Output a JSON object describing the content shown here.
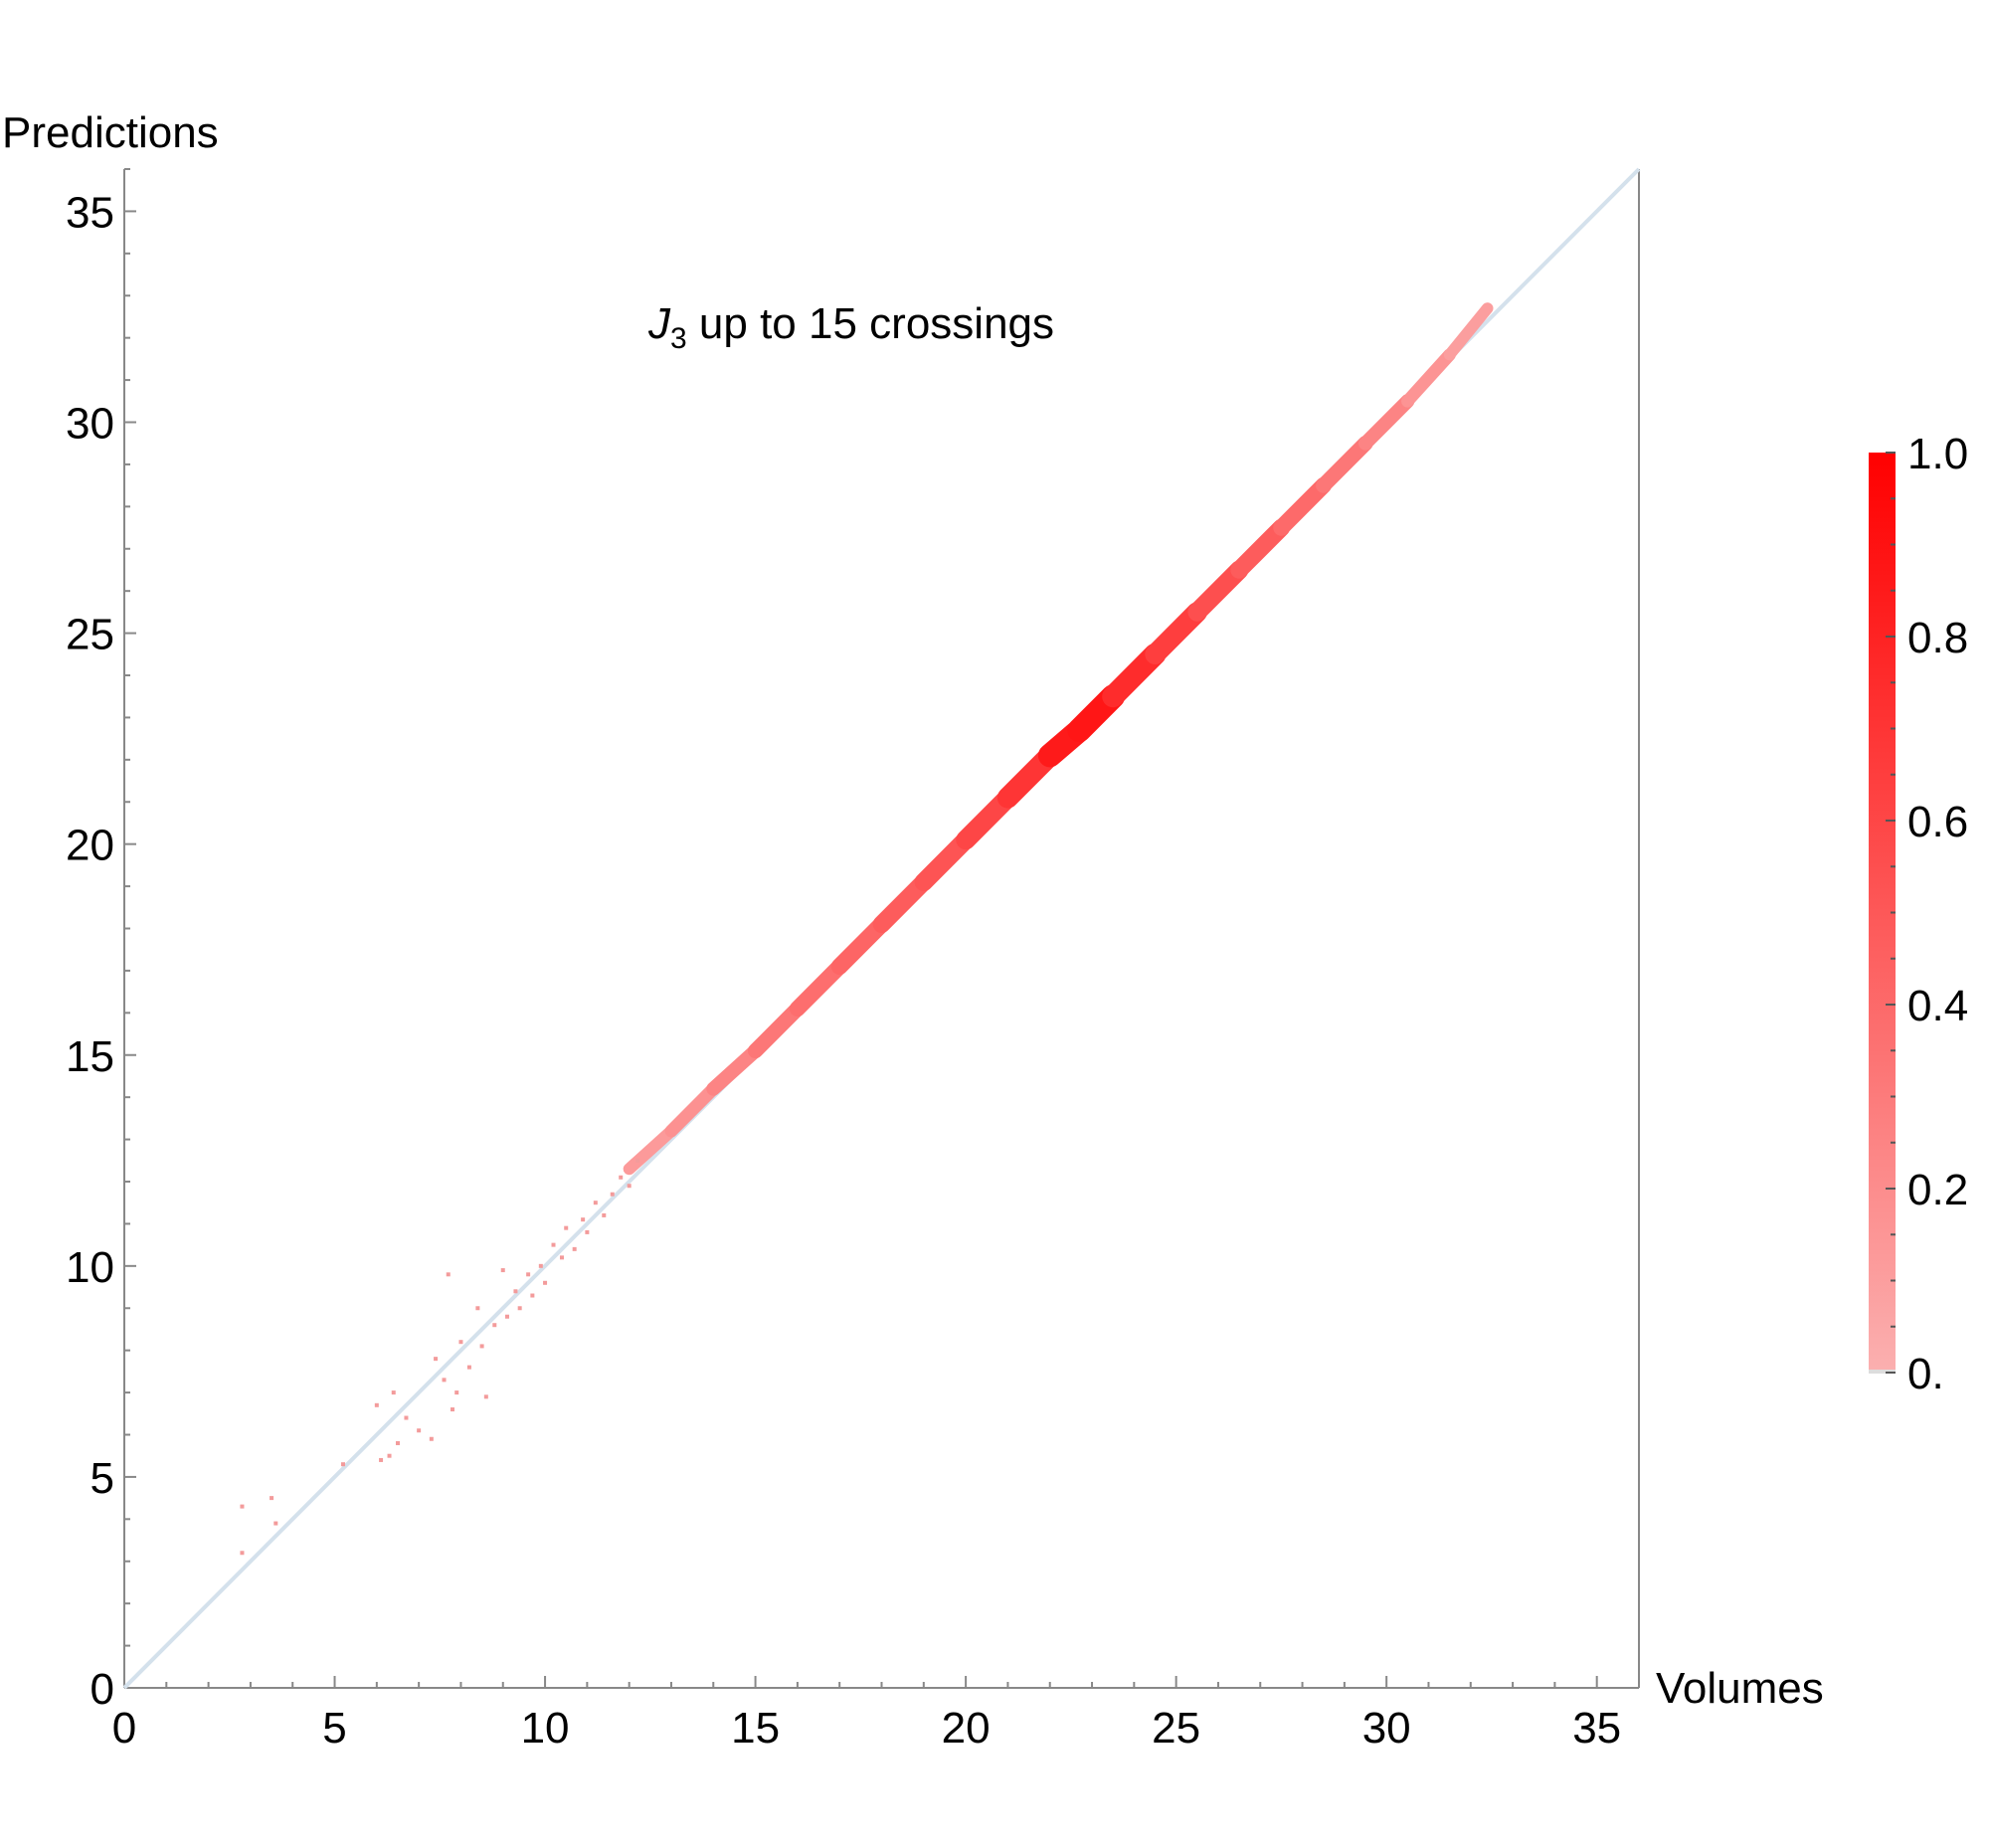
{
  "chart_data": {
    "type": "heatmap",
    "title_prefix": "J",
    "title_subscript": "3",
    "title_rest": " up to 15 crossings",
    "xlabel": "Volumes",
    "ylabel": "Predictions",
    "xlim": [
      0,
      36
    ],
    "ylim": [
      0,
      36
    ],
    "x_ticks": [
      "0",
      "5",
      "10",
      "15",
      "20",
      "25",
      "30",
      "35"
    ],
    "x_tick_values": [
      0,
      5,
      10,
      15,
      20,
      25,
      30,
      35
    ],
    "y_ticks": [
      "0",
      "5",
      "10",
      "15",
      "20",
      "25",
      "30",
      "35"
    ],
    "y_tick_values": [
      0,
      5,
      10,
      15,
      20,
      25,
      30,
      35
    ],
    "reference_line": {
      "from": [
        0,
        0
      ],
      "to": [
        36,
        36
      ],
      "color": "#d4e1ec"
    },
    "density_band": {
      "points": [
        {
          "x": 12,
          "y": 12.3,
          "density": 0.1
        },
        {
          "x": 13,
          "y": 13.2,
          "density": 0.15
        },
        {
          "x": 14,
          "y": 14.2,
          "density": 0.2
        },
        {
          "x": 15,
          "y": 15.1,
          "density": 0.3
        },
        {
          "x": 16,
          "y": 16.1,
          "density": 0.35
        },
        {
          "x": 17,
          "y": 17.1,
          "density": 0.4
        },
        {
          "x": 18,
          "y": 18.1,
          "density": 0.45
        },
        {
          "x": 19,
          "y": 19.1,
          "density": 0.5
        },
        {
          "x": 20,
          "y": 20.1,
          "density": 0.55
        },
        {
          "x": 21,
          "y": 21.1,
          "density": 0.65
        },
        {
          "x": 22,
          "y": 22.1,
          "density": 0.75
        },
        {
          "x": 22.7,
          "y": 22.7,
          "density": 0.95
        },
        {
          "x": 23.5,
          "y": 23.5,
          "density": 0.8
        },
        {
          "x": 24.5,
          "y": 24.5,
          "density": 0.7
        },
        {
          "x": 25.5,
          "y": 25.5,
          "density": 0.6
        },
        {
          "x": 26.5,
          "y": 26.5,
          "density": 0.5
        },
        {
          "x": 27.5,
          "y": 27.5,
          "density": 0.45
        },
        {
          "x": 28.5,
          "y": 28.5,
          "density": 0.35
        },
        {
          "x": 29.5,
          "y": 29.5,
          "density": 0.3
        },
        {
          "x": 30.5,
          "y": 30.5,
          "density": 0.2
        },
        {
          "x": 31.5,
          "y": 31.6,
          "density": 0.12
        },
        {
          "x": 32.4,
          "y": 32.7,
          "density": 0.08
        }
      ]
    },
    "scatter_outliers": [
      {
        "x": 2.8,
        "y": 4.3
      },
      {
        "x": 2.8,
        "y": 3.2
      },
      {
        "x": 3.5,
        "y": 4.5
      },
      {
        "x": 3.6,
        "y": 3.9
      },
      {
        "x": 5.2,
        "y": 5.3
      },
      {
        "x": 6.0,
        "y": 6.7
      },
      {
        "x": 6.1,
        "y": 5.4
      },
      {
        "x": 6.3,
        "y": 5.5
      },
      {
        "x": 6.4,
        "y": 7.0
      },
      {
        "x": 6.5,
        "y": 5.8
      },
      {
        "x": 6.7,
        "y": 6.4
      },
      {
        "x": 7.0,
        "y": 6.1
      },
      {
        "x": 7.3,
        "y": 5.9
      },
      {
        "x": 7.4,
        "y": 7.8
      },
      {
        "x": 7.6,
        "y": 7.3
      },
      {
        "x": 7.7,
        "y": 9.8
      },
      {
        "x": 7.8,
        "y": 6.6
      },
      {
        "x": 7.9,
        "y": 7.0
      },
      {
        "x": 8.0,
        "y": 8.2
      },
      {
        "x": 8.2,
        "y": 7.6
      },
      {
        "x": 8.4,
        "y": 9.0
      },
      {
        "x": 8.5,
        "y": 8.1
      },
      {
        "x": 8.6,
        "y": 6.9
      },
      {
        "x": 8.8,
        "y": 8.6
      },
      {
        "x": 9.0,
        "y": 9.9
      },
      {
        "x": 9.1,
        "y": 8.8
      },
      {
        "x": 9.3,
        "y": 9.4
      },
      {
        "x": 9.4,
        "y": 9.0
      },
      {
        "x": 9.6,
        "y": 9.8
      },
      {
        "x": 9.7,
        "y": 9.3
      },
      {
        "x": 9.9,
        "y": 10.0
      },
      {
        "x": 10.0,
        "y": 9.6
      },
      {
        "x": 10.2,
        "y": 10.5
      },
      {
        "x": 10.4,
        "y": 10.2
      },
      {
        "x": 10.5,
        "y": 10.9
      },
      {
        "x": 10.7,
        "y": 10.4
      },
      {
        "x": 10.9,
        "y": 11.1
      },
      {
        "x": 11.0,
        "y": 10.8
      },
      {
        "x": 11.2,
        "y": 11.5
      },
      {
        "x": 11.4,
        "y": 11.2
      },
      {
        "x": 11.6,
        "y": 11.7
      },
      {
        "x": 11.8,
        "y": 12.1
      },
      {
        "x": 12.0,
        "y": 11.9
      },
      {
        "x": 12.2,
        "y": 12.5
      }
    ],
    "colorbar": {
      "range": [
        0,
        1
      ],
      "ticks": [
        "1.0",
        "0.8",
        "0.6",
        "0.4",
        "0.2",
        "0."
      ],
      "tick_values": [
        1.0,
        0.8,
        0.6,
        0.4,
        0.2,
        0.0
      ],
      "color_low": "#fbb0b0",
      "color_high": "#ff0000"
    },
    "grid": false
  }
}
